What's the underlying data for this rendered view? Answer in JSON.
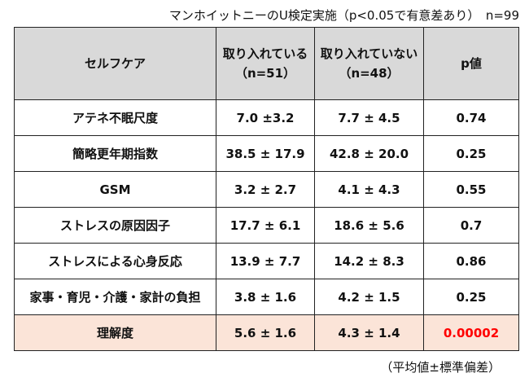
{
  "caption": "マンホイットニーのU検定実施（p<0.05で有意差あり）　n=99",
  "header": {
    "col1": "セルフケア",
    "col2a": "取り入れている",
    "col2b": "（n=51）",
    "col3a": "取り入れていない",
    "col3b": "（n=48）",
    "col4": "p値"
  },
  "rows": [
    {
      "label": "アテネ不眠尺度",
      "yes": "7.0 ±3.2",
      "no": "7.7 ± 4.5",
      "p": "0.74"
    },
    {
      "label": "簡略更年期指数",
      "yes": "38.5 ± 17.9",
      "no": "42.8 ± 20.0",
      "p": "0.25"
    },
    {
      "label": "GSM",
      "yes": "3.2 ± 2.7",
      "no": "4.1 ± 4.3",
      "p": "0.55"
    },
    {
      "label": "ストレスの原因因子",
      "yes": "17.7 ± 6.1",
      "no": "18.6 ± 5.6",
      "p": "0.7"
    },
    {
      "label": "ストレスによる心身反応",
      "yes": "13.9 ± 7.7",
      "no": "14.2 ± 8.3",
      "p": "0.86"
    },
    {
      "label": "家事・育児・介護・家計の負担",
      "yes": "3.8 ± 1.6",
      "no": "4.2 ± 1.5",
      "p": "0.25"
    },
    {
      "label": "理解度",
      "yes": "5.6 ± 1.6",
      "no": "4.3 ± 1.4",
      "p": "0.00002"
    }
  ],
  "note": "（平均値±標準偏差）",
  "colors": {
    "header_bg": "#d9d9d9",
    "highlight_bg": "#fbe4d8",
    "significant": "#ff0000"
  }
}
